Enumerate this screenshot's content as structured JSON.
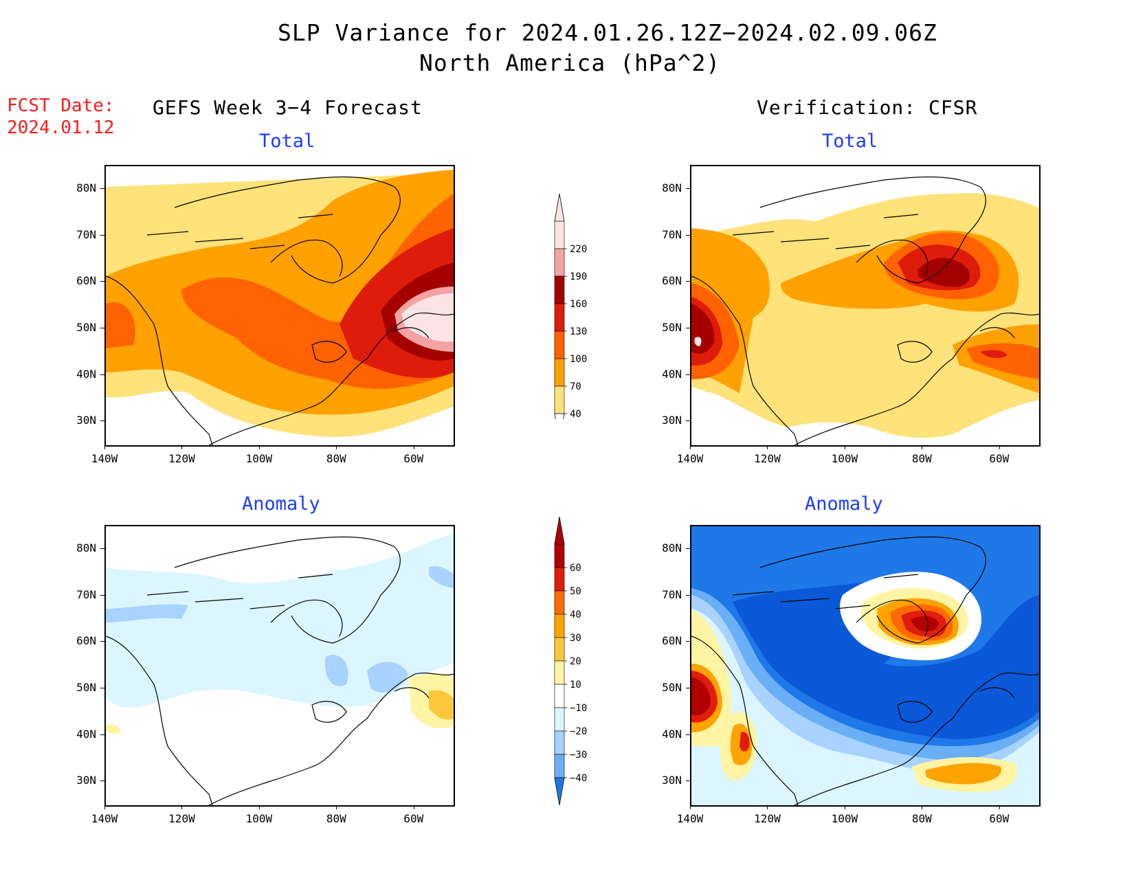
{
  "header": {
    "title_line1": "SLP Variance for 2024.01.26.12Z−2024.02.09.06Z",
    "title_line2": "North America (hPa^2)",
    "fcst_date_label": "FCST Date:",
    "fcst_date_value": "2024.01.12"
  },
  "columns": {
    "left": "GEFS Week 3−4 Forecast",
    "right": "Verification: CFSR"
  },
  "panels": {
    "forecast_total": {
      "label": "Total"
    },
    "forecast_anomaly": {
      "label": "Anomaly"
    },
    "verification_total": {
      "label": "Total"
    },
    "verification_anomaly": {
      "label": "Anomaly"
    }
  },
  "axes": {
    "lat_labels": [
      "80N",
      "70N",
      "60N",
      "50N",
      "40N",
      "30N"
    ],
    "lon_labels": [
      "140W",
      "120W",
      "100W",
      "80W",
      "60W"
    ],
    "lat_range": [
      25,
      85
    ],
    "lon_range": [
      -140,
      -50
    ]
  },
  "colorbars": {
    "total": {
      "labels": [
        "220",
        "190",
        "160",
        "130",
        "100",
        "70",
        "40"
      ],
      "colors": [
        "#fce4e4",
        "#f4a3a3",
        "#a50000",
        "#dd1c0b",
        "#ff6200",
        "#ffa100",
        "#ffe27a"
      ]
    },
    "anomaly": {
      "labels": [
        "60",
        "50",
        "40",
        "30",
        "20",
        "10",
        "−10",
        "−20",
        "−30",
        "−40"
      ],
      "colors": [
        "#b10000",
        "#e01d0c",
        "#ff6a00",
        "#ffa300",
        "#ffc73d",
        "#fff4a3",
        "#ffffff",
        "#dcf6ff",
        "#a8d2ff",
        "#6aaef6",
        "#1e78e8"
      ]
    }
  }
}
